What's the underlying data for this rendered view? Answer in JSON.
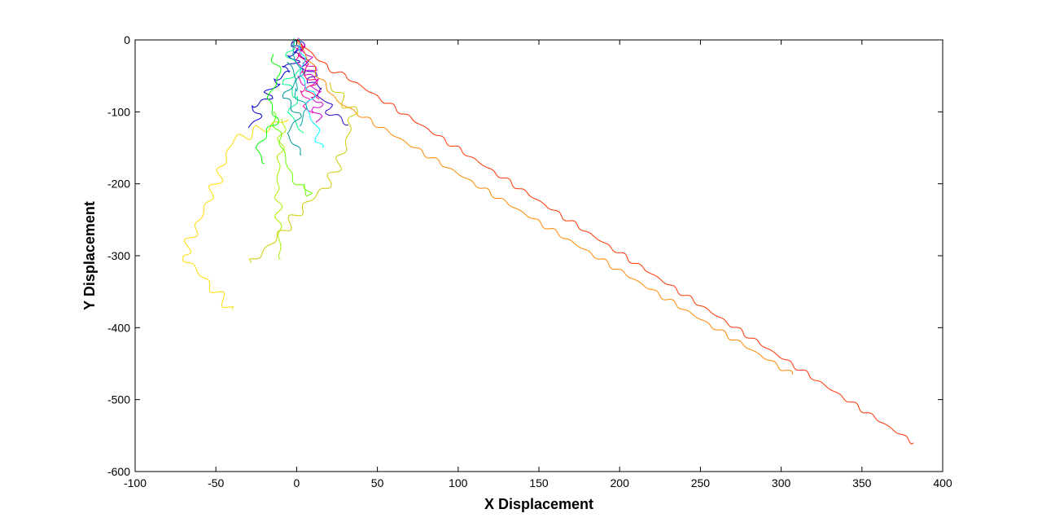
{
  "chart_data": {
    "type": "line",
    "title": "",
    "xlabel": "X Displacement",
    "ylabel": "Y Displacement",
    "xlim": [
      -100,
      400
    ],
    "ylim": [
      -600,
      0
    ],
    "xticks": [
      -100,
      -50,
      0,
      50,
      100,
      150,
      200,
      250,
      300,
      350,
      400
    ],
    "yticks": [
      0,
      -100,
      -200,
      -300,
      -400,
      -500,
      -600
    ],
    "grid": false,
    "legend": "none",
    "series": [
      {
        "color": "#0000cc",
        "x": [
          0,
          -3,
          4,
          -6,
          2,
          -9,
          -4,
          -14,
          -10,
          -20,
          -15,
          -28,
          -22,
          -30
        ],
        "y": [
          0,
          -8,
          -15,
          -22,
          -30,
          -38,
          -45,
          -55,
          -62,
          -72,
          -80,
          -92,
          -105,
          -122
        ],
        "wiggle": 3
      },
      {
        "color": "#3300cc",
        "x": [
          0,
          5,
          -2,
          8,
          3,
          12,
          7,
          16,
          12,
          22,
          18,
          28,
          32
        ],
        "y": [
          0,
          -10,
          -18,
          -28,
          -38,
          -48,
          -58,
          -68,
          -78,
          -90,
          -100,
          -110,
          -118
        ],
        "wiggle": 3
      },
      {
        "color": "#cc00cc",
        "x": [
          0,
          6,
          2,
          10,
          4,
          12,
          5,
          14,
          8,
          15,
          9,
          16,
          10,
          15,
          12
        ],
        "y": [
          0,
          -8,
          -15,
          -24,
          -32,
          -40,
          -48,
          -56,
          -64,
          -72,
          -80,
          -88,
          -96,
          -105,
          -115
        ],
        "wiggle": 3
      },
      {
        "color": "#ff00aa",
        "x": [
          0,
          -2,
          3,
          -1,
          5,
          0,
          6,
          2,
          8,
          4,
          10
        ],
        "y": [
          0,
          -10,
          -20,
          -30,
          -42,
          -52,
          -62,
          -72,
          -82,
          -92,
          -102
        ],
        "wiggle": 3
      },
      {
        "color": "#ff0066",
        "x": [
          0,
          4,
          1,
          8,
          3,
          12,
          6,
          14
        ],
        "y": [
          0,
          -12,
          -22,
          -34,
          -46,
          -58,
          -70,
          -82
        ],
        "wiggle": 3
      },
      {
        "color": "#ff3300",
        "x": [
          0,
          10,
          20,
          30,
          382
        ],
        "y": [
          0,
          -20,
          -40,
          -50,
          -560
        ],
        "wiggle": 3
      },
      {
        "color": "#ff8800",
        "x": [
          0,
          15,
          25,
          307
        ],
        "y": [
          0,
          -55,
          -85,
          -465
        ],
        "wiggle": 3
      },
      {
        "color": "#ffdd00",
        "x": [
          -5,
          -40,
          -50,
          -70,
          -40
        ],
        "y": [
          -110,
          -140,
          -200,
          -300,
          -375
        ],
        "wiggle": 7
      },
      {
        "color": "#cccc00",
        "x": [
          20,
          35,
          30,
          20,
          5,
          -10,
          -28
        ],
        "y": [
          -60,
          -100,
          -150,
          -200,
          -230,
          -270,
          -310
        ],
        "wiggle": 7
      },
      {
        "color": "#aaee00",
        "x": [
          -8,
          -10,
          -12,
          -10
        ],
        "y": [
          -110,
          -150,
          -200,
          -305
        ],
        "wiggle": 5
      },
      {
        "color": "#66ff00",
        "x": [
          -15,
          -10,
          -5,
          0,
          8,
          5
        ],
        "y": [
          -100,
          -140,
          -180,
          -200,
          -215,
          -200
        ],
        "wiggle": 4
      },
      {
        "color": "#00ff00",
        "x": [
          -15,
          -10,
          -18,
          -12,
          -25,
          -20
        ],
        "y": [
          -20,
          -50,
          -80,
          -110,
          -150,
          -172
        ],
        "wiggle": 4
      },
      {
        "color": "#00ff88",
        "x": [
          0,
          -6,
          3,
          -8,
          1,
          -5,
          4
        ],
        "y": [
          0,
          -20,
          -40,
          -60,
          -80,
          -100,
          -130
        ],
        "wiggle": 4
      },
      {
        "color": "#00ffff",
        "x": [
          0,
          5,
          2,
          10,
          6,
          14,
          12,
          16
        ],
        "y": [
          0,
          -25,
          -50,
          -75,
          -100,
          -125,
          -140,
          -150
        ],
        "wiggle": 4
      },
      {
        "color": "#00aaaa",
        "x": [
          0,
          -3,
          4,
          -2,
          6,
          2
        ],
        "y": [
          0,
          -20,
          -45,
          -70,
          -95,
          -120
        ],
        "wiggle": 4
      },
      {
        "color": "#009999",
        "x": [
          -5,
          0,
          -8,
          2,
          -6,
          3
        ],
        "y": [
          -30,
          -55,
          -80,
          -105,
          -130,
          -160
        ],
        "wiggle": 4
      }
    ]
  }
}
